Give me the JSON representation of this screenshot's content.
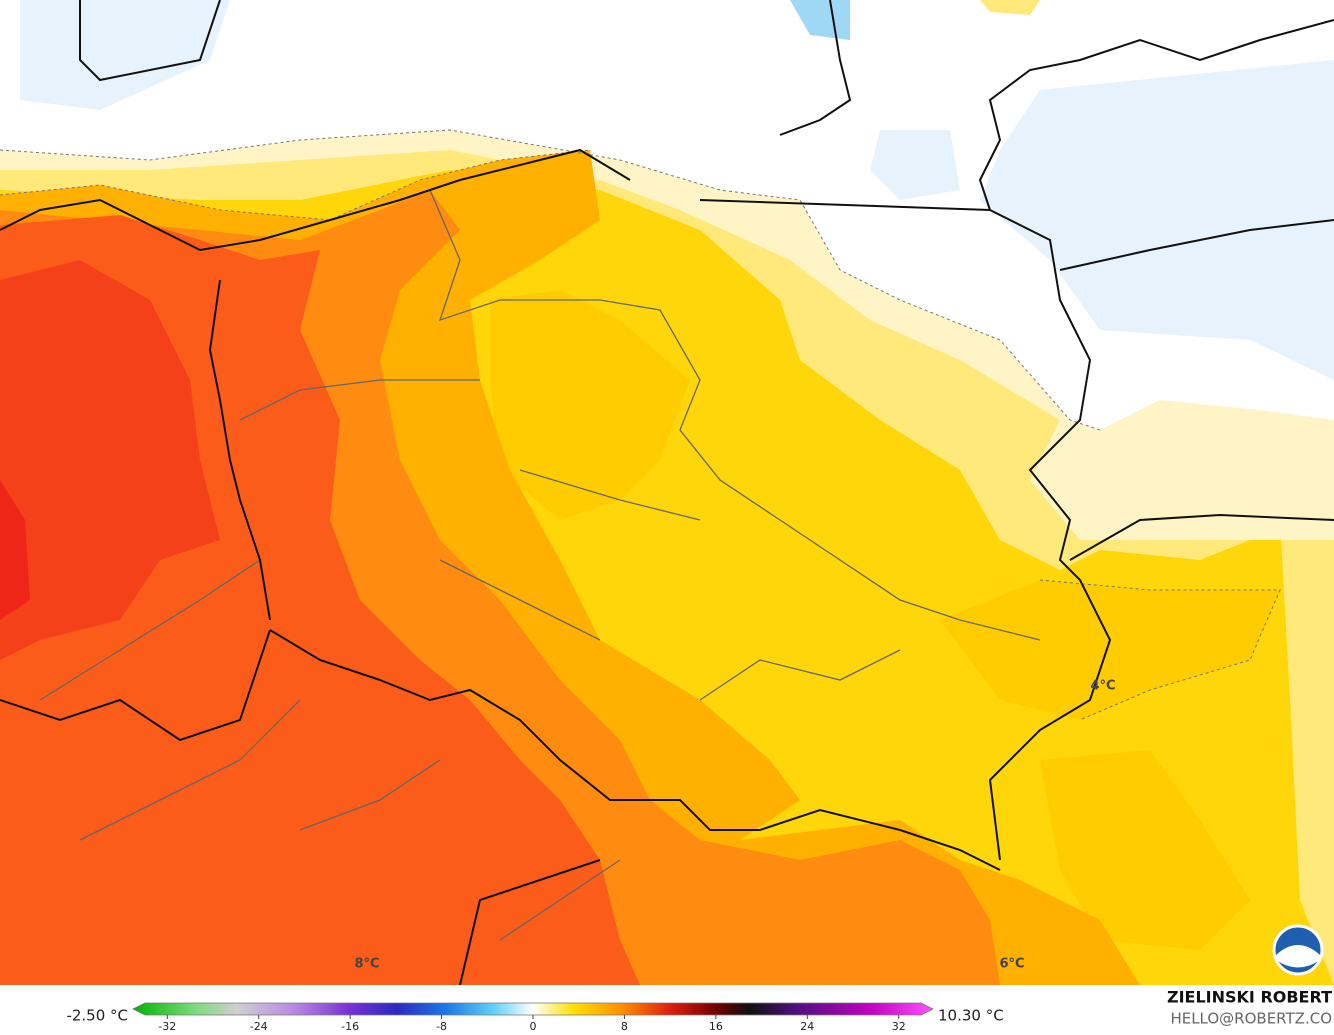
{
  "map": {
    "contour_labels": [
      "4°C",
      "8°C",
      "6°C"
    ]
  },
  "legend": {
    "min_label": "-2.50 °C",
    "max_label": "10.30 °C",
    "colorbar": {
      "lim": [
        -35,
        35
      ],
      "ticks": [
        -32,
        -24,
        -16,
        -8,
        0,
        8,
        16,
        24,
        32
      ]
    }
  },
  "credit": {
    "name": "ZIELINSKI ROBERT",
    "email": "HELLO@ROBERTZ.CO"
  }
}
